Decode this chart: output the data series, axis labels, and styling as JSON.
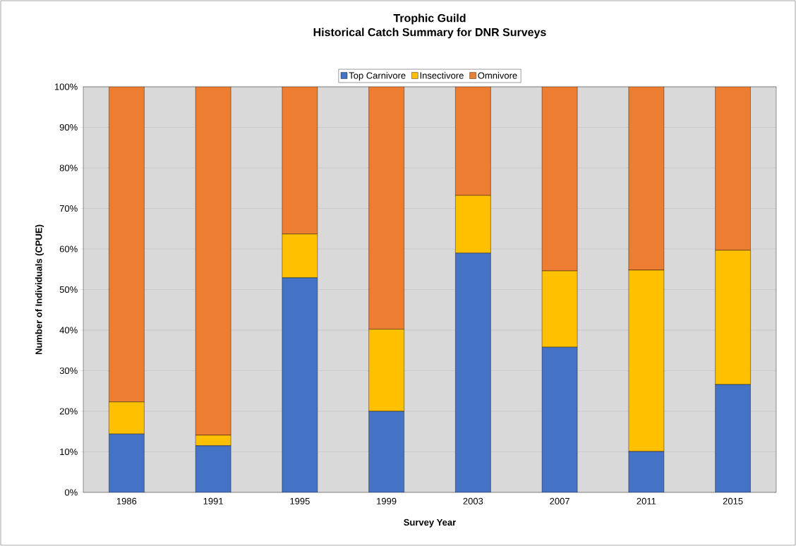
{
  "chart_data": {
    "type": "bar",
    "stacked": true,
    "title": "Trophic Guild\nHistorical Catch Summary for DNR Surveys",
    "xlabel": "Survey Year",
    "ylabel": "Number of Individuals (CPUE)",
    "categories": [
      "1986",
      "1991",
      "1995",
      "1999",
      "2003",
      "2007",
      "2011",
      "2015"
    ],
    "series": [
      {
        "name": "Top Carnivore",
        "color": "#4472c4",
        "values": [
          14.4,
          11.5,
          52.9,
          20.0,
          59.0,
          35.8,
          10.1,
          26.6
        ]
      },
      {
        "name": "Insectivore",
        "color": "#ffc000",
        "values": [
          7.9,
          2.6,
          10.8,
          20.2,
          14.2,
          18.8,
          44.7,
          33.1
        ]
      },
      {
        "name": "Omnivore",
        "color": "#ed7d31",
        "values": [
          77.7,
          85.9,
          36.3,
          59.8,
          26.8,
          45.4,
          45.2,
          40.3
        ]
      }
    ],
    "ylim": [
      0,
      100
    ],
    "yticks": [
      {
        "value": 0,
        "label": "0%"
      },
      {
        "value": 10,
        "label": "10%"
      },
      {
        "value": 20,
        "label": "20%"
      },
      {
        "value": 30,
        "label": "30%"
      },
      {
        "value": 40,
        "label": "40%"
      },
      {
        "value": 50,
        "label": "50%"
      },
      {
        "value": 60,
        "label": "60%"
      },
      {
        "value": 70,
        "label": "70%"
      },
      {
        "value": 80,
        "label": "80%"
      },
      {
        "value": 90,
        "label": "90%"
      },
      {
        "value": 100,
        "label": "100%"
      }
    ],
    "grid": "y",
    "legend": "top"
  }
}
